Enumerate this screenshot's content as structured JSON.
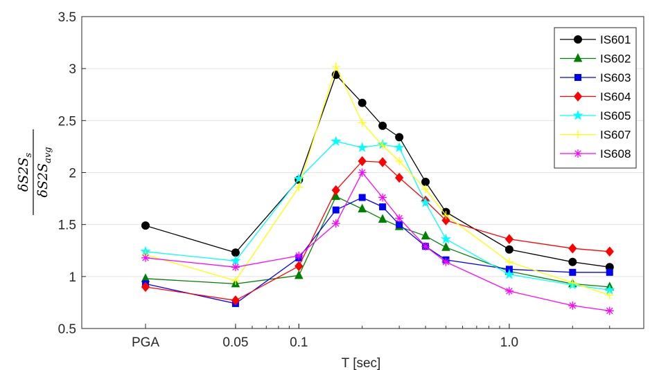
{
  "chart_data": {
    "type": "line",
    "xlabel": "T [sec]",
    "ylabel": {
      "numerator_main": "δS2S",
      "numerator_sub": "s",
      "denominator_main": "δS2S",
      "denominator_sub": "avg"
    },
    "x_ticks": [
      "PGA",
      "0.05",
      "0.1",
      "1.0"
    ],
    "y_ticks": [
      "0.5",
      "1",
      "1.5",
      "2",
      "2.5",
      "3",
      "3.5"
    ],
    "ylim": [
      0.5,
      3.5
    ],
    "x_scale": "log (periods), PGA placed left of 0.05",
    "grid": "horizontal",
    "legend_position": "top-right",
    "x": [
      "PGA",
      0.05,
      0.1,
      0.15,
      0.2,
      0.25,
      0.3,
      0.4,
      0.5,
      1.0,
      2.0,
      3.0
    ],
    "series": [
      {
        "name": "IS601",
        "color": "#000000",
        "marker": "circle",
        "values": [
          1.49,
          1.23,
          1.93,
          2.94,
          2.67,
          2.45,
          2.34,
          1.91,
          1.62,
          1.26,
          1.14,
          1.09
        ]
      },
      {
        "name": "IS602",
        "color": "#008000",
        "marker": "triangle",
        "values": [
          0.98,
          0.93,
          1.01,
          1.77,
          1.65,
          1.55,
          1.48,
          1.39,
          1.28,
          1.05,
          0.93,
          0.9
        ]
      },
      {
        "name": "IS603",
        "color": "#0000ff",
        "marker": "square",
        "values": [
          0.93,
          0.74,
          1.18,
          1.64,
          1.76,
          1.67,
          1.5,
          1.29,
          1.16,
          1.07,
          1.04,
          1.04
        ]
      },
      {
        "name": "IS604",
        "color": "#ff0000",
        "marker": "diamond",
        "values": [
          0.9,
          0.77,
          1.1,
          1.83,
          2.11,
          2.1,
          1.95,
          1.73,
          1.54,
          1.36,
          1.27,
          1.24
        ]
      },
      {
        "name": "IS605",
        "color": "#00ffff",
        "marker": "pentagram",
        "values": [
          1.24,
          1.15,
          1.94,
          2.3,
          2.24,
          2.27,
          2.24,
          1.71,
          1.36,
          1.02,
          0.92,
          0.87
        ]
      },
      {
        "name": "IS607",
        "color": "#ffff00",
        "marker": "plus",
        "values": [
          1.21,
          0.96,
          1.86,
          3.02,
          2.48,
          2.26,
          2.11,
          1.84,
          1.59,
          1.14,
          0.94,
          0.82
        ]
      },
      {
        "name": "IS608",
        "color": "#ff00ff",
        "marker": "asterisk",
        "values": [
          1.18,
          1.09,
          1.2,
          1.51,
          2.0,
          1.76,
          1.56,
          1.29,
          1.14,
          0.86,
          0.72,
          0.67
        ]
      }
    ]
  }
}
